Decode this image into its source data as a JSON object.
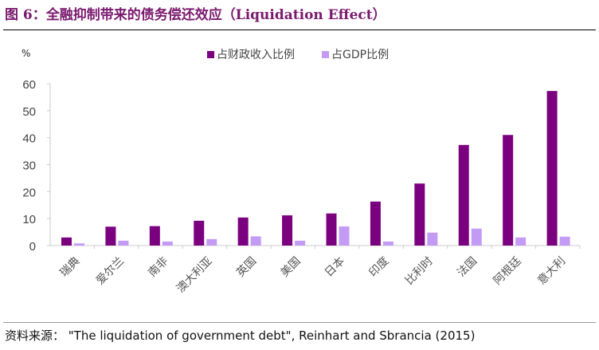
{
  "title": "图 6：全融抑制带来的债务偿还效应（Liquidation Effect）",
  "source": "资料来源：  \"The liquidation of government debt\", Reinhart and Sbrancia (2015)",
  "chart_data": {
    "type": "bar",
    "title": "图 6：全融抑制带来的债务偿还效应（Liquidation Effect）",
    "ylabel": "%",
    "xlabel": "",
    "ylim": [
      0,
      60
    ],
    "yticks": [
      0,
      10,
      20,
      30,
      40,
      50,
      60
    ],
    "grid": false,
    "legend": "top-center",
    "categories": [
      "瑞典",
      "爱尔兰",
      "南非",
      "澳大利亚",
      "英国",
      "美国",
      "日本",
      "印度",
      "比利时",
      "法国",
      "阿根廷",
      "意大利"
    ],
    "series": [
      {
        "name": "占财政收入比例",
        "color": "#7b0080",
        "values": [
          3.0,
          7.0,
          7.2,
          9.2,
          10.4,
          11.2,
          11.9,
          16.3,
          23.0,
          37.3,
          41.0,
          57.3
        ]
      },
      {
        "name": "占GDP比例",
        "color": "#c39bf5",
        "values": [
          0.8,
          1.8,
          1.5,
          2.4,
          3.4,
          1.8,
          7.1,
          1.5,
          4.8,
          6.3,
          3.0,
          3.3
        ]
      }
    ]
  }
}
